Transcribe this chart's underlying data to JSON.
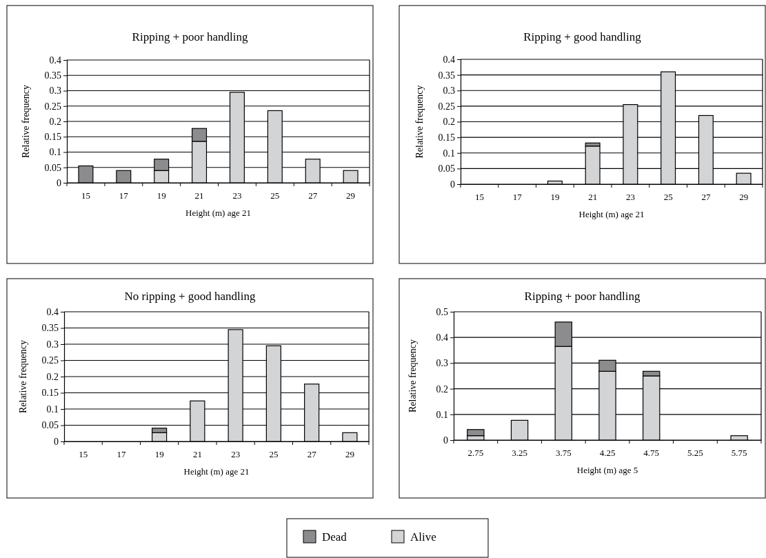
{
  "chart_data": [
    {
      "type": "bar",
      "title": "Ripping + poor handling",
      "xlabel": "Height (m) age 21",
      "ylabel": "Relative frequency",
      "categories": [
        "15",
        "17",
        "19",
        "21",
        "23",
        "25",
        "27",
        "29"
      ],
      "stacked": true,
      "grid": "y",
      "ylim": [
        0,
        0.4
      ],
      "yticks": [
        0,
        0.05,
        0.1,
        0.15,
        0.2,
        0.25,
        0.3,
        0.35,
        0.4
      ],
      "legend": "bottom",
      "series": [
        {
          "name": "Alive",
          "color": "#d3d4d6",
          "values": [
            0,
            0,
            0.04,
            0.135,
            0.295,
            0.235,
            0.077,
            0.04
          ]
        },
        {
          "name": "Dead",
          "color": "#8c8c8e",
          "values": [
            0.055,
            0.04,
            0.037,
            0.042,
            0,
            0,
            0,
            0
          ]
        }
      ]
    },
    {
      "type": "bar",
      "title": "Ripping + good handling",
      "xlabel": "Height (m) age 21",
      "ylabel": "Relative frequency",
      "categories": [
        "15",
        "17",
        "19",
        "21",
        "23",
        "25",
        "27",
        "29"
      ],
      "stacked": true,
      "grid": "y",
      "ylim": [
        0,
        0.4
      ],
      "yticks": [
        0,
        0.05,
        0.1,
        0.15,
        0.2,
        0.25,
        0.3,
        0.35,
        0.4
      ],
      "legend": "bottom",
      "series": [
        {
          "name": "Alive",
          "color": "#d3d4d6",
          "values": [
            0,
            0,
            0.01,
            0.122,
            0.255,
            0.36,
            0.22,
            0.035
          ]
        },
        {
          "name": "Dead",
          "color": "#8c8c8e",
          "values": [
            0,
            0,
            0,
            0.01,
            0,
            0,
            0,
            0
          ]
        }
      ]
    },
    {
      "type": "bar",
      "title": "No ripping + good handling",
      "xlabel": "Height (m) age 21",
      "ylabel": "Relative frequency",
      "categories": [
        "15",
        "17",
        "19",
        "21",
        "23",
        "25",
        "27",
        "29"
      ],
      "stacked": true,
      "grid": "y",
      "ylim": [
        0,
        0.4
      ],
      "yticks": [
        0,
        0.05,
        0.1,
        0.15,
        0.2,
        0.25,
        0.3,
        0.35,
        0.4
      ],
      "legend": "bottom",
      "series": [
        {
          "name": "Alive",
          "color": "#d3d4d6",
          "values": [
            0,
            0,
            0.027,
            0.125,
            0.345,
            0.295,
            0.177,
            0.027
          ]
        },
        {
          "name": "Dead",
          "color": "#8c8c8e",
          "values": [
            0,
            0,
            0.014,
            0,
            0,
            0,
            0,
            0
          ]
        }
      ]
    },
    {
      "type": "bar",
      "title": "Ripping + poor handling",
      "xlabel": "Height (m) age 5",
      "ylabel": "Relative frequency",
      "categories": [
        "2.75",
        "3.25",
        "3.75",
        "4.25",
        "4.75",
        "5.25",
        "5.75"
      ],
      "stacked": true,
      "grid": "y",
      "ylim": [
        0,
        0.5
      ],
      "yticks": [
        0,
        0.1,
        0.2,
        0.3,
        0.4,
        0.5
      ],
      "legend": "bottom",
      "series": [
        {
          "name": "Alive",
          "color": "#d3d4d6",
          "values": [
            0.017,
            0.077,
            0.365,
            0.268,
            0.25,
            0,
            0.017
          ]
        },
        {
          "name": "Dead",
          "color": "#8c8c8e",
          "values": [
            0.024,
            0,
            0.095,
            0.043,
            0.018,
            0,
            0
          ]
        }
      ]
    }
  ]
}
